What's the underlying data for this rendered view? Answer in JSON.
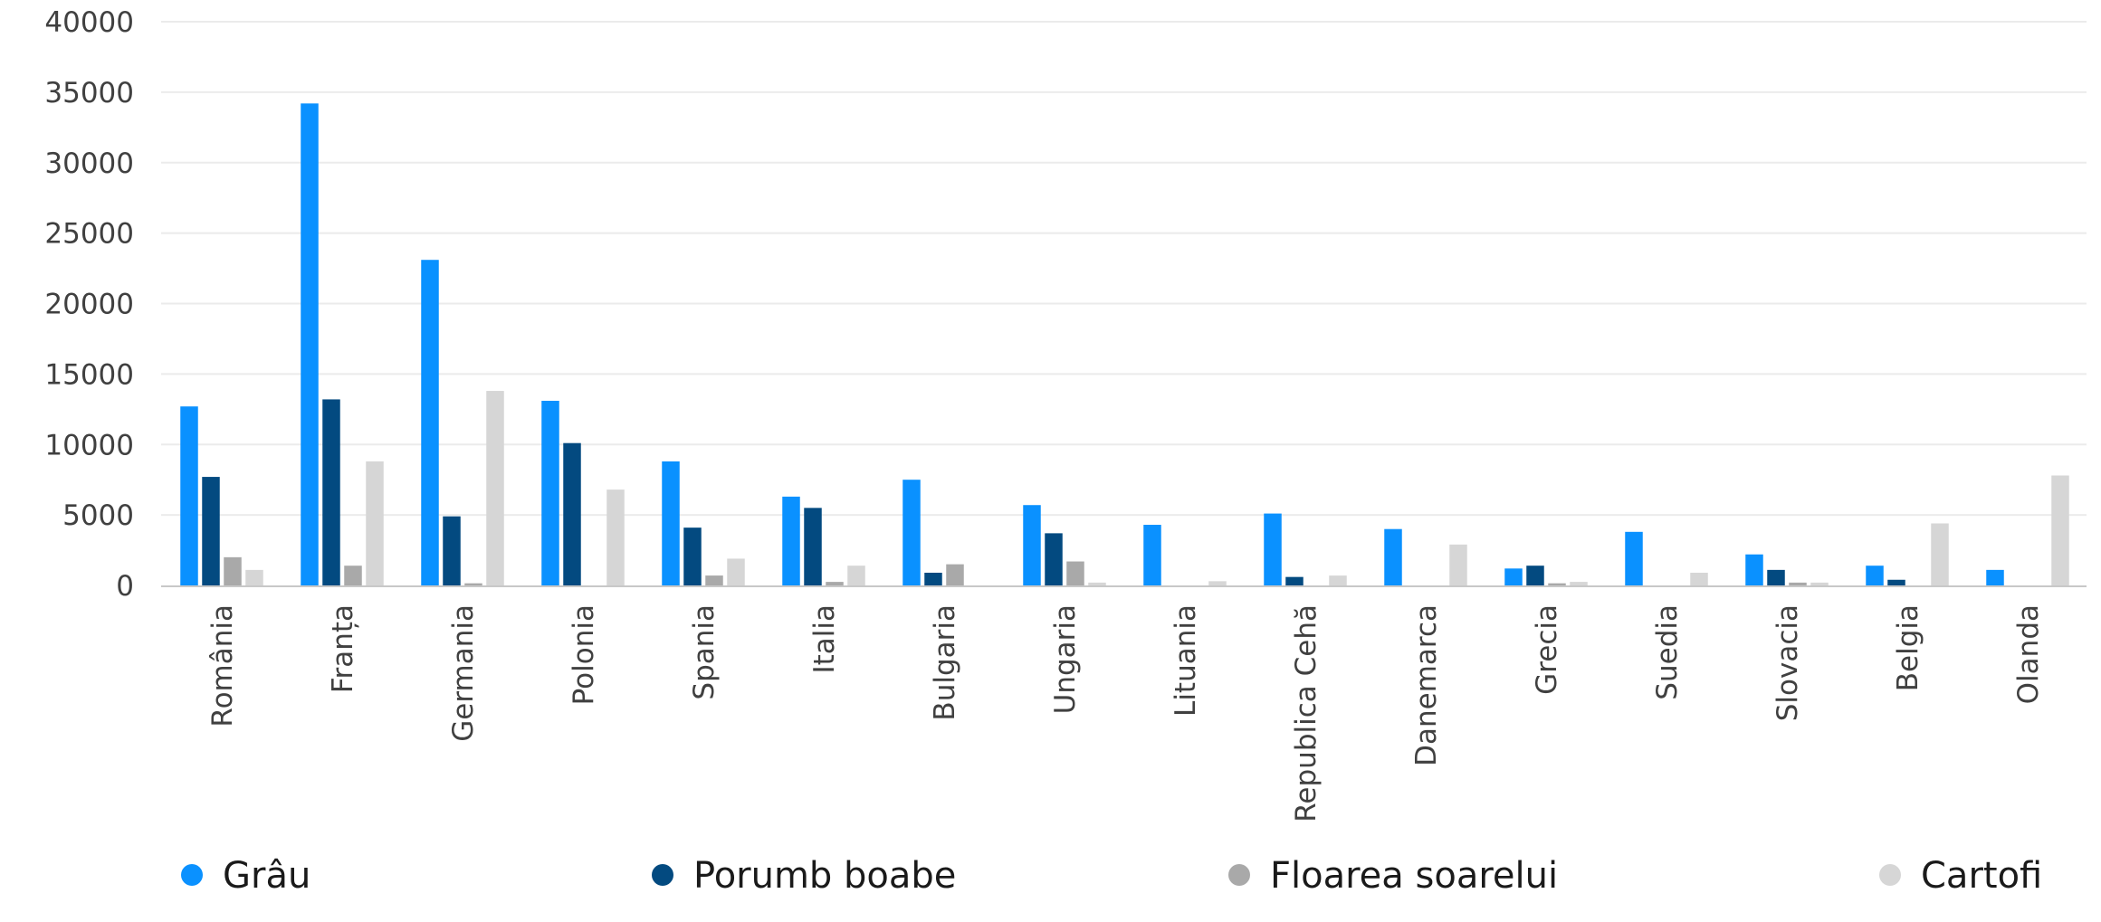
{
  "chart_data": {
    "type": "bar",
    "title": "",
    "xlabel": "",
    "ylabel": "",
    "ylim": [
      0,
      40000
    ],
    "yticks": [
      0,
      5000,
      10000,
      15000,
      20000,
      25000,
      30000,
      35000,
      40000
    ],
    "grid": true,
    "legend_position": "bottom",
    "categories": [
      "România",
      "Franța",
      "Germania",
      "Polonia",
      "Spania",
      "Italia",
      "Bulgaria",
      "Ungaria",
      "Lituania",
      "Republica Cehă",
      "Danemarca",
      "Grecia",
      "Suedia",
      "Slovacia",
      "Belgia",
      "Olanda"
    ],
    "series": [
      {
        "name": "Grâu",
        "color": "#0A91FF",
        "values": [
          12700,
          34200,
          23100,
          13100,
          8800,
          6300,
          7500,
          5700,
          4300,
          5100,
          4000,
          1200,
          3800,
          2200,
          1400,
          1100
        ]
      },
      {
        "name": "Porumb boabe",
        "color": "#034A80",
        "values": [
          7700,
          13200,
          4900,
          10100,
          4100,
          5500,
          900,
          3700,
          0,
          600,
          0,
          1400,
          0,
          1100,
          400,
          0
        ]
      },
      {
        "name": "Floarea soarelui",
        "color": "#A9A9A9",
        "values": [
          2000,
          1400,
          150,
          0,
          700,
          250,
          1500,
          1700,
          0,
          0,
          0,
          150,
          0,
          200,
          0,
          0
        ]
      },
      {
        "name": "Cartofi",
        "color": "#D6D6D6",
        "values": [
          1100,
          8800,
          13800,
          6800,
          1900,
          1400,
          0,
          200,
          300,
          700,
          2900,
          250,
          900,
          200,
          4400,
          7800
        ]
      }
    ]
  }
}
